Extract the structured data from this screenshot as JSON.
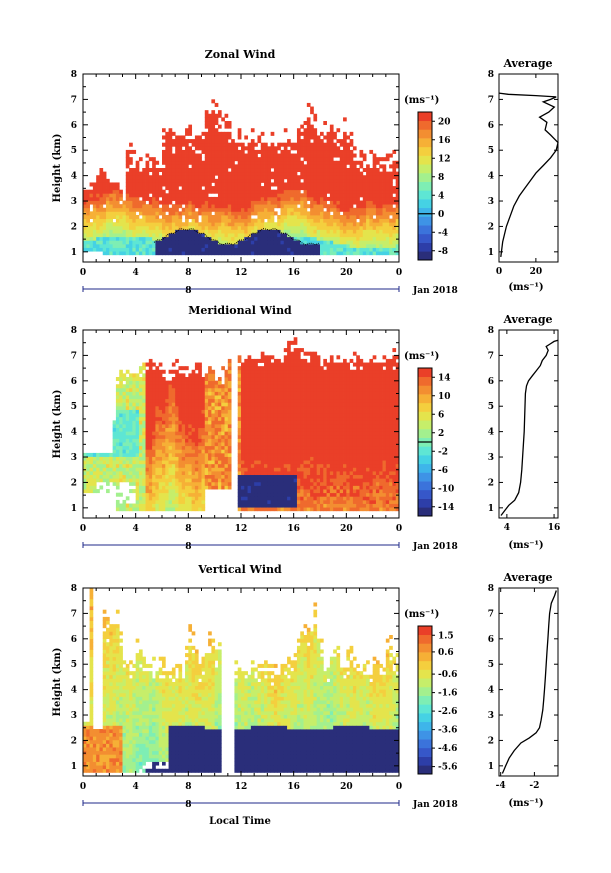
{
  "figure": {
    "colors": {
      "palette": [
        "#2a2e7a",
        "#2d3ea8",
        "#3657c9",
        "#3b73db",
        "#3e93e6",
        "#3eb5ea",
        "#45d2e4",
        "#5ee6d4",
        "#7eeeb4",
        "#a3f08e",
        "#c6ee6a",
        "#e4e44c",
        "#f4cf3e",
        "#f6b036",
        "#f38e31",
        "#ef6a2d",
        "#ea3f28"
      ],
      "outline": "#000000"
    },
    "date_label": "Jan 2018",
    "shared_x": {
      "ticks": [
        "0",
        "4",
        "8",
        "12",
        "16",
        "20",
        "0"
      ],
      "values": [
        0,
        4,
        8,
        12,
        16,
        20,
        24
      ],
      "day_marker": "8",
      "xlabel": "Local Time"
    },
    "y_ticks": [
      "1",
      "2",
      "3",
      "4",
      "5",
      "6",
      "7",
      "8"
    ]
  },
  "chart_data": [
    {
      "type": "heatmap",
      "id": "zonal",
      "title": "Zonal Wind",
      "ylabel": "Height (km)",
      "ylim": [
        0.6,
        8
      ],
      "xlim": [
        0,
        24
      ],
      "colorbar_unit": "(ms⁻¹)",
      "colorbar_ticks": [
        "20",
        "16",
        "12",
        "8",
        "4",
        "0",
        "-4",
        "-8"
      ],
      "colorbar_range": [
        -10,
        22
      ],
      "zero_line_value": 0,
      "profile": {
        "title": "Average",
        "xlabel": "(ms⁻¹)",
        "xticks": [
          "0",
          "20"
        ],
        "xtick_values": [
          0,
          20
        ],
        "xlim": [
          0,
          32
        ],
        "points": [
          [
            1,
            0.8
          ],
          [
            2,
            1.4
          ],
          [
            4,
            2.0
          ],
          [
            6,
            2.4
          ],
          [
            8,
            2.8
          ],
          [
            11,
            3.2
          ],
          [
            14,
            3.5
          ],
          [
            17,
            3.8
          ],
          [
            20,
            4.1
          ],
          [
            24,
            4.4
          ],
          [
            28,
            4.7
          ],
          [
            31,
            5.0
          ],
          [
            32,
            5.3
          ],
          [
            28,
            5.6
          ],
          [
            25,
            5.8
          ],
          [
            26,
            6.1
          ],
          [
            22,
            6.3
          ],
          [
            27,
            6.5
          ],
          [
            30,
            6.7
          ],
          [
            24,
            6.9
          ],
          [
            28,
            7.0
          ],
          [
            31,
            7.1
          ],
          [
            20,
            7.15
          ],
          [
            5,
            7.2
          ],
          [
            0,
            7.25
          ]
        ]
      },
      "params": {
        "kind": "zonal"
      }
    },
    {
      "type": "heatmap",
      "id": "meridional",
      "title": "Meridional Wind",
      "ylabel": "Height (km)",
      "ylim": [
        0.6,
        8
      ],
      "xlim": [
        0,
        24
      ],
      "colorbar_unit": "(ms⁻¹)",
      "colorbar_ticks": [
        "14",
        "10",
        "6",
        "2",
        "-2",
        "-6",
        "-10",
        "-14"
      ],
      "colorbar_range": [
        -16,
        16
      ],
      "zero_line_value": 0,
      "profile": {
        "title": "Average",
        "xlabel": "(ms⁻¹)",
        "xticks": [
          "4",
          "16"
        ],
        "xtick_values": [
          4,
          16
        ],
        "xlim": [
          2,
          17
        ],
        "points": [
          [
            2.5,
            0.7
          ],
          [
            3.5,
            0.9
          ],
          [
            4.5,
            1.1
          ],
          [
            6.0,
            1.3
          ],
          [
            7.0,
            1.6
          ],
          [
            7.5,
            2.0
          ],
          [
            7.8,
            2.5
          ],
          [
            8.0,
            3.0
          ],
          [
            8.2,
            3.5
          ],
          [
            8.4,
            4.0
          ],
          [
            8.5,
            4.5
          ],
          [
            8.6,
            5.0
          ],
          [
            8.7,
            5.5
          ],
          [
            9.0,
            5.8
          ],
          [
            9.5,
            6.0
          ],
          [
            10.5,
            6.2
          ],
          [
            11.5,
            6.4
          ],
          [
            12.5,
            6.6
          ],
          [
            13.0,
            6.8
          ],
          [
            14.0,
            7.0
          ],
          [
            14.5,
            7.2
          ],
          [
            14.0,
            7.35
          ],
          [
            15.0,
            7.45
          ],
          [
            16.0,
            7.55
          ],
          [
            17.0,
            7.6
          ]
        ]
      },
      "params": {
        "kind": "meridional"
      }
    },
    {
      "type": "heatmap",
      "id": "vertical",
      "title": "Vertical Wind",
      "xlabel": "Local Time",
      "ylabel": "Height (km)",
      "ylim": [
        0.6,
        8
      ],
      "xlim": [
        0,
        24
      ],
      "colorbar_unit": "(ms⁻¹)",
      "colorbar_ticks": [
        "1.5",
        "0.6",
        "-0.6",
        "-1.6",
        "-2.6",
        "-3.6",
        "-4.6",
        "-5.6"
      ],
      "colorbar_range": [
        -6,
        2
      ],
      "zero_line_value": null,
      "profile": {
        "title": "Average",
        "xlabel": "(ms⁻¹)",
        "xticks": [
          "-4",
          "-2"
        ],
        "xtick_values": [
          -4,
          -2
        ],
        "xlim": [
          -4.1,
          -0.6
        ],
        "points": [
          [
            -3.9,
            0.7
          ],
          [
            -3.7,
            1.0
          ],
          [
            -3.5,
            1.3
          ],
          [
            -3.2,
            1.6
          ],
          [
            -2.8,
            1.9
          ],
          [
            -2.3,
            2.1
          ],
          [
            -1.9,
            2.3
          ],
          [
            -1.7,
            2.5
          ],
          [
            -1.6,
            2.8
          ],
          [
            -1.5,
            3.2
          ],
          [
            -1.45,
            3.6
          ],
          [
            -1.4,
            4.0
          ],
          [
            -1.35,
            4.5
          ],
          [
            -1.3,
            5.0
          ],
          [
            -1.25,
            5.5
          ],
          [
            -1.2,
            6.0
          ],
          [
            -1.15,
            6.5
          ],
          [
            -1.1,
            7.0
          ],
          [
            -1.0,
            7.4
          ],
          [
            -0.8,
            7.7
          ],
          [
            -0.7,
            7.9
          ]
        ]
      },
      "params": {
        "kind": "vertical"
      }
    }
  ]
}
